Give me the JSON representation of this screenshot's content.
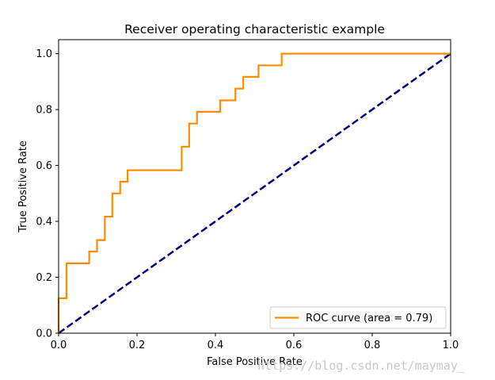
{
  "chart_data": {
    "type": "line",
    "title": "Receiver operating characteristic example",
    "xlabel": "False Positive Rate",
    "ylabel": "True Positive Rate",
    "xlim": [
      0.0,
      1.0
    ],
    "ylim": [
      0.0,
      1.05
    ],
    "xticks": [
      "0.0",
      "0.2",
      "0.4",
      "0.6",
      "0.8",
      "1.0"
    ],
    "yticks": [
      "0.0",
      "0.2",
      "0.4",
      "0.6",
      "0.8",
      "1.0"
    ],
    "grid": false,
    "legend_position": "lower right",
    "series": [
      {
        "name": "ROC curve (area = 0.79)",
        "color": "#ff8c00",
        "style": "solid",
        "x": [
          0.0,
          0.0,
          0.02,
          0.02,
          0.078,
          0.078,
          0.098,
          0.098,
          0.118,
          0.118,
          0.137,
          0.137,
          0.157,
          0.157,
          0.176,
          0.176,
          0.314,
          0.314,
          0.333,
          0.333,
          0.353,
          0.353,
          0.412,
          0.412,
          0.451,
          0.451,
          0.471,
          0.471,
          0.51,
          0.51,
          0.569,
          0.569,
          1.0
        ],
        "y": [
          0.0,
          0.125,
          0.125,
          0.25,
          0.25,
          0.292,
          0.292,
          0.333,
          0.333,
          0.417,
          0.417,
          0.5,
          0.5,
          0.542,
          0.542,
          0.583,
          0.583,
          0.667,
          0.667,
          0.75,
          0.75,
          0.792,
          0.792,
          0.833,
          0.833,
          0.875,
          0.875,
          0.917,
          0.917,
          0.958,
          0.958,
          1.0,
          1.0
        ]
      },
      {
        "name": "",
        "color": "#000080",
        "style": "dashed",
        "x": [
          0.0,
          1.0
        ],
        "y": [
          0.0,
          1.0
        ]
      }
    ]
  },
  "watermark": "https://blog.csdn.net/maymay_"
}
